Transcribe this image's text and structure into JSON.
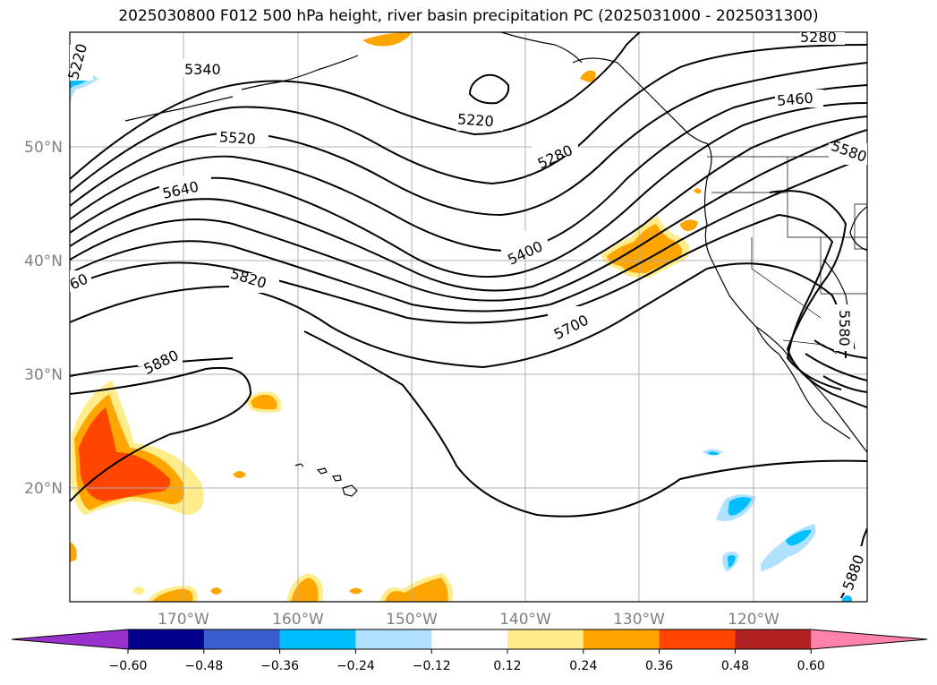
{
  "title": "2025030800 F012 500 hPa height, river basin precipitation PC (2025031000 - 2025031300)",
  "lat_labels": [
    "50°N",
    "40°N",
    "30°N",
    "20°N"
  ],
  "lon_labels": [
    "170°W",
    "160°W",
    "150°W",
    "140°W",
    "130°W",
    "120°W"
  ],
  "contour_labels": [
    "5340",
    "5520",
    "5640",
    "5820",
    "5880",
    "5220",
    "5280",
    "5400",
    "5700",
    "5460",
    "5580",
    "5580",
    "5880",
    "5280",
    "5220",
    "60"
  ],
  "colorbar": {
    "ticks": [
      "−0.60",
      "−0.48",
      "−0.36",
      "−0.24",
      "−0.12",
      "0.12",
      "0.24",
      "0.36",
      "0.48",
      "0.60"
    ],
    "colors": [
      "#9932CC",
      "#00008B",
      "#3A5FCD",
      "#00BFFF",
      "#B0E2FF",
      "#FFFFFF",
      "#FFEC8B",
      "#FFA500",
      "#FF4500",
      "#B22222",
      "#FF82AB"
    ]
  }
}
